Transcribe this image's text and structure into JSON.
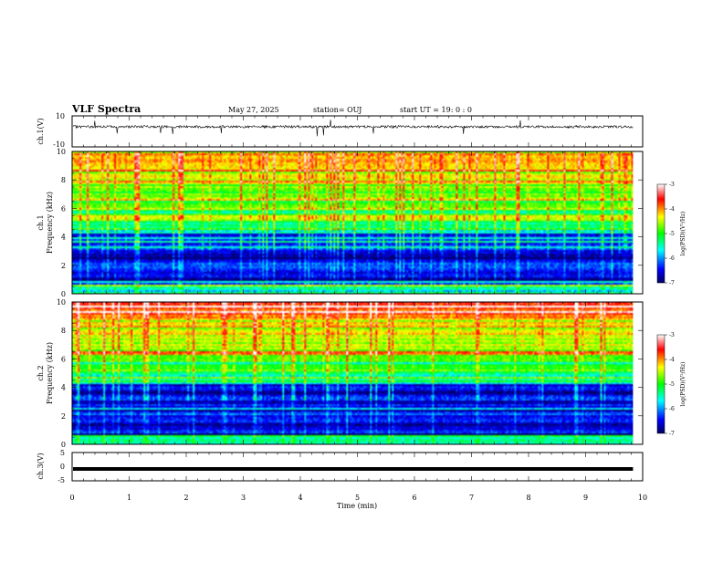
{
  "header": {
    "title": "VLF Spectra",
    "date": "May 27, 2025",
    "station": "station= OUJ",
    "start": "start  UT  =   19: 0  : 0"
  },
  "chart_data": {
    "type": "heatmap",
    "x": {
      "label": "Time  (min)",
      "range": [
        0,
        10
      ],
      "ticks": [
        "0",
        "1",
        "2",
        "3",
        "4",
        "5",
        "6",
        "7",
        "8",
        "9",
        "10"
      ]
    },
    "panels": [
      {
        "id": "ch1-waveform",
        "kind": "line",
        "ylabel": "ch.1(V)",
        "ylim": [
          -10,
          10
        ],
        "yticks": [
          "10",
          "-10"
        ],
        "baseline": 3
      },
      {
        "id": "ch1-spectrogram",
        "kind": "heatmap",
        "ylabel": "ch.1\nFrequency  (kHz)",
        "ylabel_top": "ch.1",
        "ylabel_bottom": "Frequency  (kHz)",
        "ylim": [
          0,
          10
        ],
        "yticks": [
          "0",
          "2",
          "4",
          "6",
          "8",
          "10"
        ]
      },
      {
        "id": "ch2-spectrogram",
        "kind": "heatmap",
        "ylabel": "ch.2\nFrequency  (kHz)",
        "ylabel_top": "ch.2",
        "ylabel_bottom": "Frequency  (kHz)",
        "ylim": [
          0,
          10
        ],
        "yticks": [
          "0",
          "2",
          "4",
          "6",
          "8",
          "10"
        ]
      },
      {
        "id": "ch3-waveform",
        "kind": "line",
        "ylabel": "ch.3(V)",
        "ylim": [
          -5,
          5
        ],
        "yticks": [
          "5",
          "0",
          "-5"
        ],
        "baseline": -0.8
      }
    ],
    "data_end_min": 9.83,
    "colorbar": {
      "label": "log(PSD)(V²/Hz)",
      "range": [
        -7,
        -3
      ],
      "ticks": [
        "-3",
        "-4",
        "-5",
        "-6",
        "-7"
      ],
      "colors": [
        "#000080",
        "#0000ff",
        "#00ffff",
        "#00ff00",
        "#ffff00",
        "#ff0000",
        "#ffffff"
      ]
    }
  }
}
